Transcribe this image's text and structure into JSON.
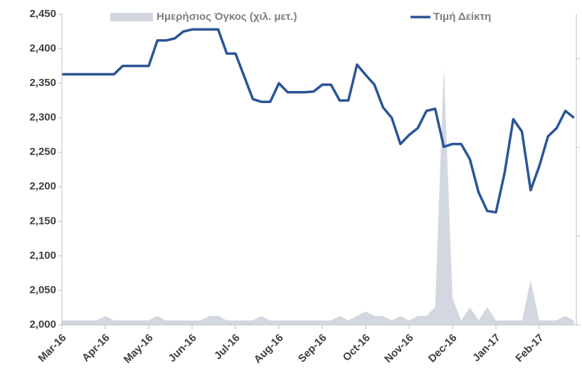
{
  "chart_data": {
    "type": "line",
    "categories": [
      "Mar-16",
      null,
      null,
      null,
      null,
      "Apr-16",
      null,
      null,
      null,
      null,
      "May-16",
      null,
      null,
      null,
      null,
      "Jun-16",
      null,
      null,
      null,
      null,
      "Jul-16",
      null,
      null,
      null,
      null,
      "Aug-16",
      null,
      null,
      null,
      null,
      "Sep-16",
      null,
      null,
      null,
      null,
      "Oct-16",
      null,
      null,
      null,
      null,
      "Nov-16",
      null,
      null,
      null,
      null,
      "Dec-16",
      null,
      null,
      null,
      null,
      "Jan-17",
      null,
      null,
      null,
      null,
      "Feb-17",
      null,
      null,
      null,
      null
    ],
    "series": [
      {
        "name": "Ημερήσιος Όγκος (χιλ. μετ.)",
        "color": "#d3d7df",
        "axis": "y2",
        "kind": "area",
        "values": [
          0.05,
          0.05,
          0.05,
          0.05,
          0.05,
          0.1,
          0.05,
          0.05,
          0.05,
          0.05,
          0.05,
          0.1,
          0.05,
          0.05,
          0.05,
          0.05,
          0.05,
          0.1,
          0.1,
          0.05,
          0.05,
          0.05,
          0.05,
          0.1,
          0.05,
          0.05,
          0.05,
          0.05,
          0.05,
          0.05,
          0.05,
          0.05,
          0.1,
          0.05,
          0.1,
          0.15,
          0.1,
          0.1,
          0.05,
          0.1,
          0.05,
          0.1,
          0.1,
          0.2,
          2.9,
          0.3,
          0.05,
          0.2,
          0.05,
          0.2,
          0.05,
          0.05,
          0.05,
          0.05,
          0.5,
          0.05,
          0.05,
          0.05,
          0.1,
          0.05
        ]
      },
      {
        "name": "Τιμή Δείκτη",
        "color": "#2a5597",
        "axis": "y",
        "kind": "line",
        "values": [
          2363,
          2363,
          2363,
          2363,
          2363,
          2363,
          2363,
          2375,
          2375,
          2375,
          2375,
          2412,
          2412,
          2415,
          2425,
          2428,
          2428,
          2428,
          2428,
          2393,
          2393,
          2360,
          2327,
          2323,
          2323,
          2350,
          2337,
          2337,
          2337,
          2338,
          2348,
          2348,
          2325,
          2325,
          2377,
          2362,
          2348,
          2315,
          2300,
          2262,
          2275,
          2285,
          2310,
          2313,
          2258,
          2262,
          2262,
          2240,
          2192,
          2165,
          2163,
          2220,
          2298,
          2280,
          2195,
          2230,
          2273,
          2285,
          2310,
          2300
        ]
      }
    ],
    "ylim": [
      2000,
      2450
    ],
    "yticks": [
      {
        "value": 2000,
        "label": "2,000"
      },
      {
        "value": 2050,
        "label": "2,050"
      },
      {
        "value": 2100,
        "label": "2,100"
      },
      {
        "value": 2150,
        "label": "2,150"
      },
      {
        "value": 2200,
        "label": "2,200"
      },
      {
        "value": 2250,
        "label": "2,250"
      },
      {
        "value": 2300,
        "label": "2,300"
      },
      {
        "value": 2350,
        "label": "2,350"
      },
      {
        "value": 2400,
        "label": "2,400"
      },
      {
        "value": 2450,
        "label": "2,450"
      }
    ],
    "y2lim": [
      0,
      3.5
    ],
    "y2ticks": [
      0,
      1,
      2,
      3
    ],
    "legend": "top",
    "grid": false
  }
}
